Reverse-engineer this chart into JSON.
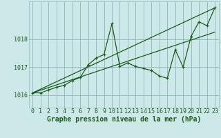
{
  "xlabel": "Graphe pression niveau de la mer (hPa)",
  "background_color": "#cce8e8",
  "grid_color": "#99bbbb",
  "line_color": "#1a5c1a",
  "xlim": [
    -0.5,
    23.5
  ],
  "ylim": [
    1015.55,
    1019.35
  ],
  "yticks": [
    1016,
    1017,
    1018
  ],
  "xticks": [
    0,
    1,
    2,
    3,
    4,
    5,
    6,
    7,
    8,
    9,
    10,
    11,
    12,
    13,
    14,
    15,
    16,
    17,
    18,
    19,
    20,
    21,
    22,
    23
  ],
  "pressure_x": [
    0,
    1,
    2,
    3,
    4,
    5,
    6,
    7,
    8,
    9,
    10,
    11,
    12,
    13,
    14,
    15,
    16,
    17,
    18,
    19,
    20,
    21,
    22,
    23
  ],
  "pressure_y": [
    1016.08,
    1016.08,
    1016.18,
    1016.28,
    1016.35,
    1016.52,
    1016.63,
    1017.08,
    1017.32,
    1017.45,
    1018.55,
    1017.02,
    1017.15,
    1017.02,
    1016.95,
    1016.88,
    1016.68,
    1016.6,
    1017.62,
    1017.0,
    1018.1,
    1018.62,
    1018.48,
    1019.12
  ],
  "trend1_x": [
    0,
    23
  ],
  "trend1_y": [
    1016.08,
    1019.12
  ],
  "trend2_x": [
    0,
    23
  ],
  "trend2_y": [
    1016.08,
    1018.25
  ],
  "font_color": "#1a5c1a",
  "xlabel_fontsize": 7,
  "tick_fontsize": 6
}
